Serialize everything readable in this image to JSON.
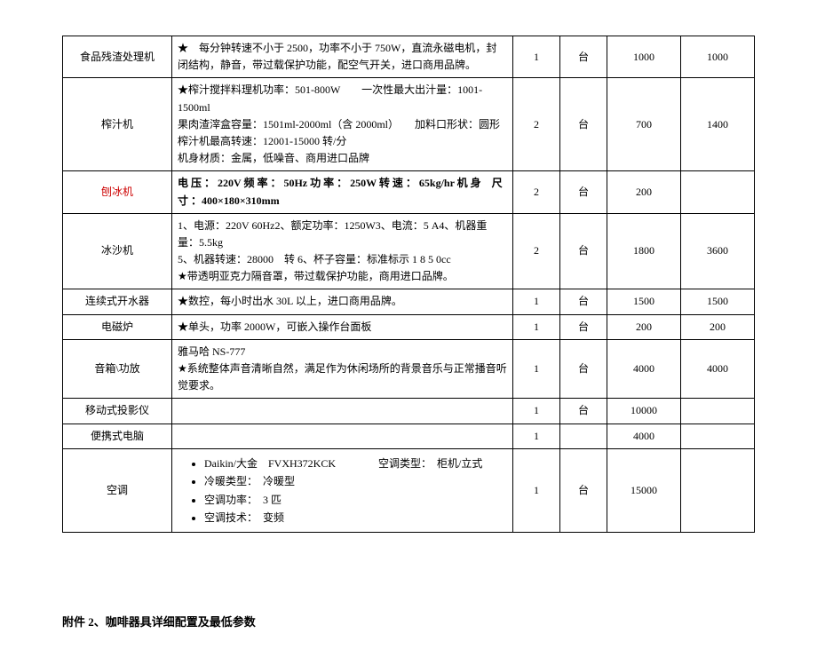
{
  "table": {
    "rows": [
      {
        "name": "食品残渣处理机",
        "spec_html": "★　每分钟转速不小于 2500，功率不小于 750W，直流永磁电机，封闭结构，静音，带过载保护功能，配空气开关，进口商用品牌。",
        "qty": "1",
        "unit": "台",
        "price": "1000",
        "total": "1000",
        "name_class": "",
        "spec_class": "",
        "spec_align": "left"
      },
      {
        "name": "榨汁机",
        "spec_html": "★榨汁搅拌料理机功率：501-800W　　一次性最大出汁量：1001-1500ml<br>果肉渣滓盒容量：1501ml-2000ml（含 2000ml）　　加料口形状：圆形<br>榨汁机最高转速：12001-15000 转/分<br>机身材质：金属，低噪音、商用进口品牌",
        "qty": "2",
        "unit": "台",
        "price": "700",
        "total": "1400",
        "name_class": "",
        "spec_class": ""
      },
      {
        "name": "刨冰机",
        "spec_html": "电 压 ： 220V 频 率 ： 50Hz 功 率 ： 250W 转 速 ： 65kg/hr 机 身　尺 寸 ：400×180×310mm",
        "qty": "2",
        "unit": "台",
        "price": "200",
        "total": "",
        "name_class": "red",
        "spec_class": "bold"
      },
      {
        "name": "冰沙机",
        "spec_html": "1、电源：220V 60Hz2、额定功率：1250W3、电流：5 A4、机器重量：5.5kg<br>5、机器转速：28000　转 6、杯子容量：标准标示 1 8 5 0cc<br>★带透明亚克力隔音罩，带过载保护功能，商用进口品牌。",
        "qty": "2",
        "unit": "台",
        "price": "1800",
        "total": "3600",
        "name_class": "",
        "spec_class": ""
      },
      {
        "name": "连续式开水器",
        "spec_html": "★数控，每小时出水 30L 以上，进口商用品牌。",
        "qty": "1",
        "unit": "台",
        "price": "1500",
        "total": "1500",
        "name_class": "",
        "spec_class": ""
      },
      {
        "name": "电磁炉",
        "spec_html": "★单头，功率 2000W，可嵌入操作台面板",
        "qty": "1",
        "unit": "台",
        "price": "200",
        "total": "200",
        "name_class": "",
        "spec_class": ""
      },
      {
        "name": "音箱\\功放",
        "spec_html": "雅马哈 NS-777<br>★系统整体声音清晰自然，满足作为休闲场所的背景音乐与正常播音听觉要求。",
        "qty": "1",
        "unit": "台",
        "price": "4000",
        "total": "4000",
        "name_class": "",
        "spec_class": ""
      },
      {
        "name": "移动式投影仪",
        "spec_html": "",
        "qty": "1",
        "unit": "台",
        "price": "10000",
        "total": "",
        "name_class": "",
        "spec_class": ""
      },
      {
        "name": "便携式电脑",
        "spec_html": "",
        "qty": "1",
        "unit": "",
        "price": "4000",
        "total": "",
        "name_class": "",
        "spec_class": ""
      },
      {
        "name": "空调",
        "spec_html": "<ul class=\"spec-list\"><li>Daikin/大金　FVXH372KCK　　　　空调类型：　柜机/立式</li><li>冷暖类型：　冷暖型</li><li>空调功率：　3 匹</li><li>空调技术：　变频</li></ul>",
        "qty": "1",
        "unit": "台",
        "price": "15000",
        "total": "",
        "name_class": "",
        "spec_class": ""
      }
    ]
  },
  "footer": "附件 2、咖啡器具详细配置及最低参数"
}
